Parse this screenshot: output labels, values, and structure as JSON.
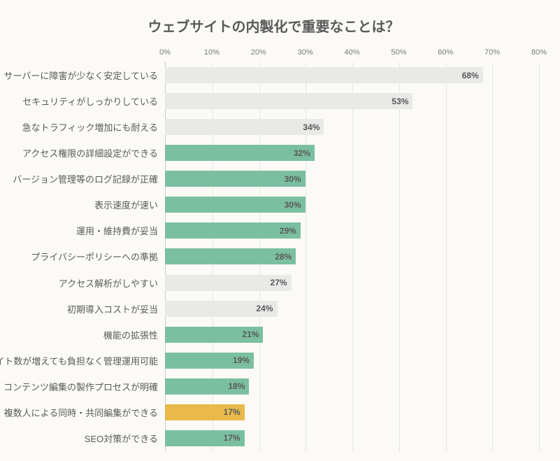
{
  "chart": {
    "type": "bar-horizontal",
    "title": "ウェブサイトの内製化で重要なことは？",
    "title_fontsize": 20,
    "title_color": "#595959",
    "background_color": "#fbfaf6",
    "xlim_max": 80,
    "xtick_step": 10,
    "xtick_suffix": "%",
    "grid_color": "#e6e6e0",
    "axis_color": "#c8c8c8",
    "label_fontsize": 13,
    "label_color": "#595959",
    "value_fontsize": 12,
    "value_color": "#595959",
    "colors": {
      "green": "#7bbfa1",
      "gold": "#e9b94a",
      "gray": "#e9e9e7"
    },
    "bars": [
      {
        "label": "サーバーに障害が少なく安定している",
        "value": 68,
        "color": "gray",
        "val_inside": true
      },
      {
        "label": "セキュリティがしっかりしている",
        "value": 53,
        "color": "gray",
        "val_inside": true
      },
      {
        "label": "急なトラフィック増加にも耐える",
        "value": 34,
        "color": "gray",
        "val_inside": true
      },
      {
        "label": "アクセス権限の詳細設定ができる",
        "value": 32,
        "color": "green",
        "val_inside": true
      },
      {
        "label": "バージョン管理等のログ記録が正確",
        "value": 30,
        "color": "green",
        "val_inside": true
      },
      {
        "label": "表示速度が速い",
        "value": 30,
        "color": "green",
        "val_inside": true
      },
      {
        "label": "運用・維持費が妥当",
        "value": 29,
        "color": "green",
        "val_inside": true
      },
      {
        "label": "プライバシーポリシーへの準拠",
        "value": 28,
        "color": "green",
        "val_inside": true
      },
      {
        "label": "アクセス解析がしやすい",
        "value": 27,
        "color": "gray",
        "val_inside": true
      },
      {
        "label": "初期導入コストが妥当",
        "value": 24,
        "color": "gray",
        "val_inside": true
      },
      {
        "label": "機能の拡張性",
        "value": 21,
        "color": "green",
        "val_inside": true
      },
      {
        "label": "サイト数が増えても負担なく管理運用可能",
        "value": 19,
        "color": "green",
        "val_inside": true
      },
      {
        "label": "コンテンツ編集の製作プロセスが明確",
        "value": 18,
        "color": "green",
        "val_inside": true
      },
      {
        "label": "複数人による同時・共同編集ができる",
        "value": 17,
        "color": "gold",
        "val_inside": true
      },
      {
        "label": "SEO対策ができる",
        "value": 17,
        "color": "green",
        "val_inside": true
      }
    ]
  }
}
